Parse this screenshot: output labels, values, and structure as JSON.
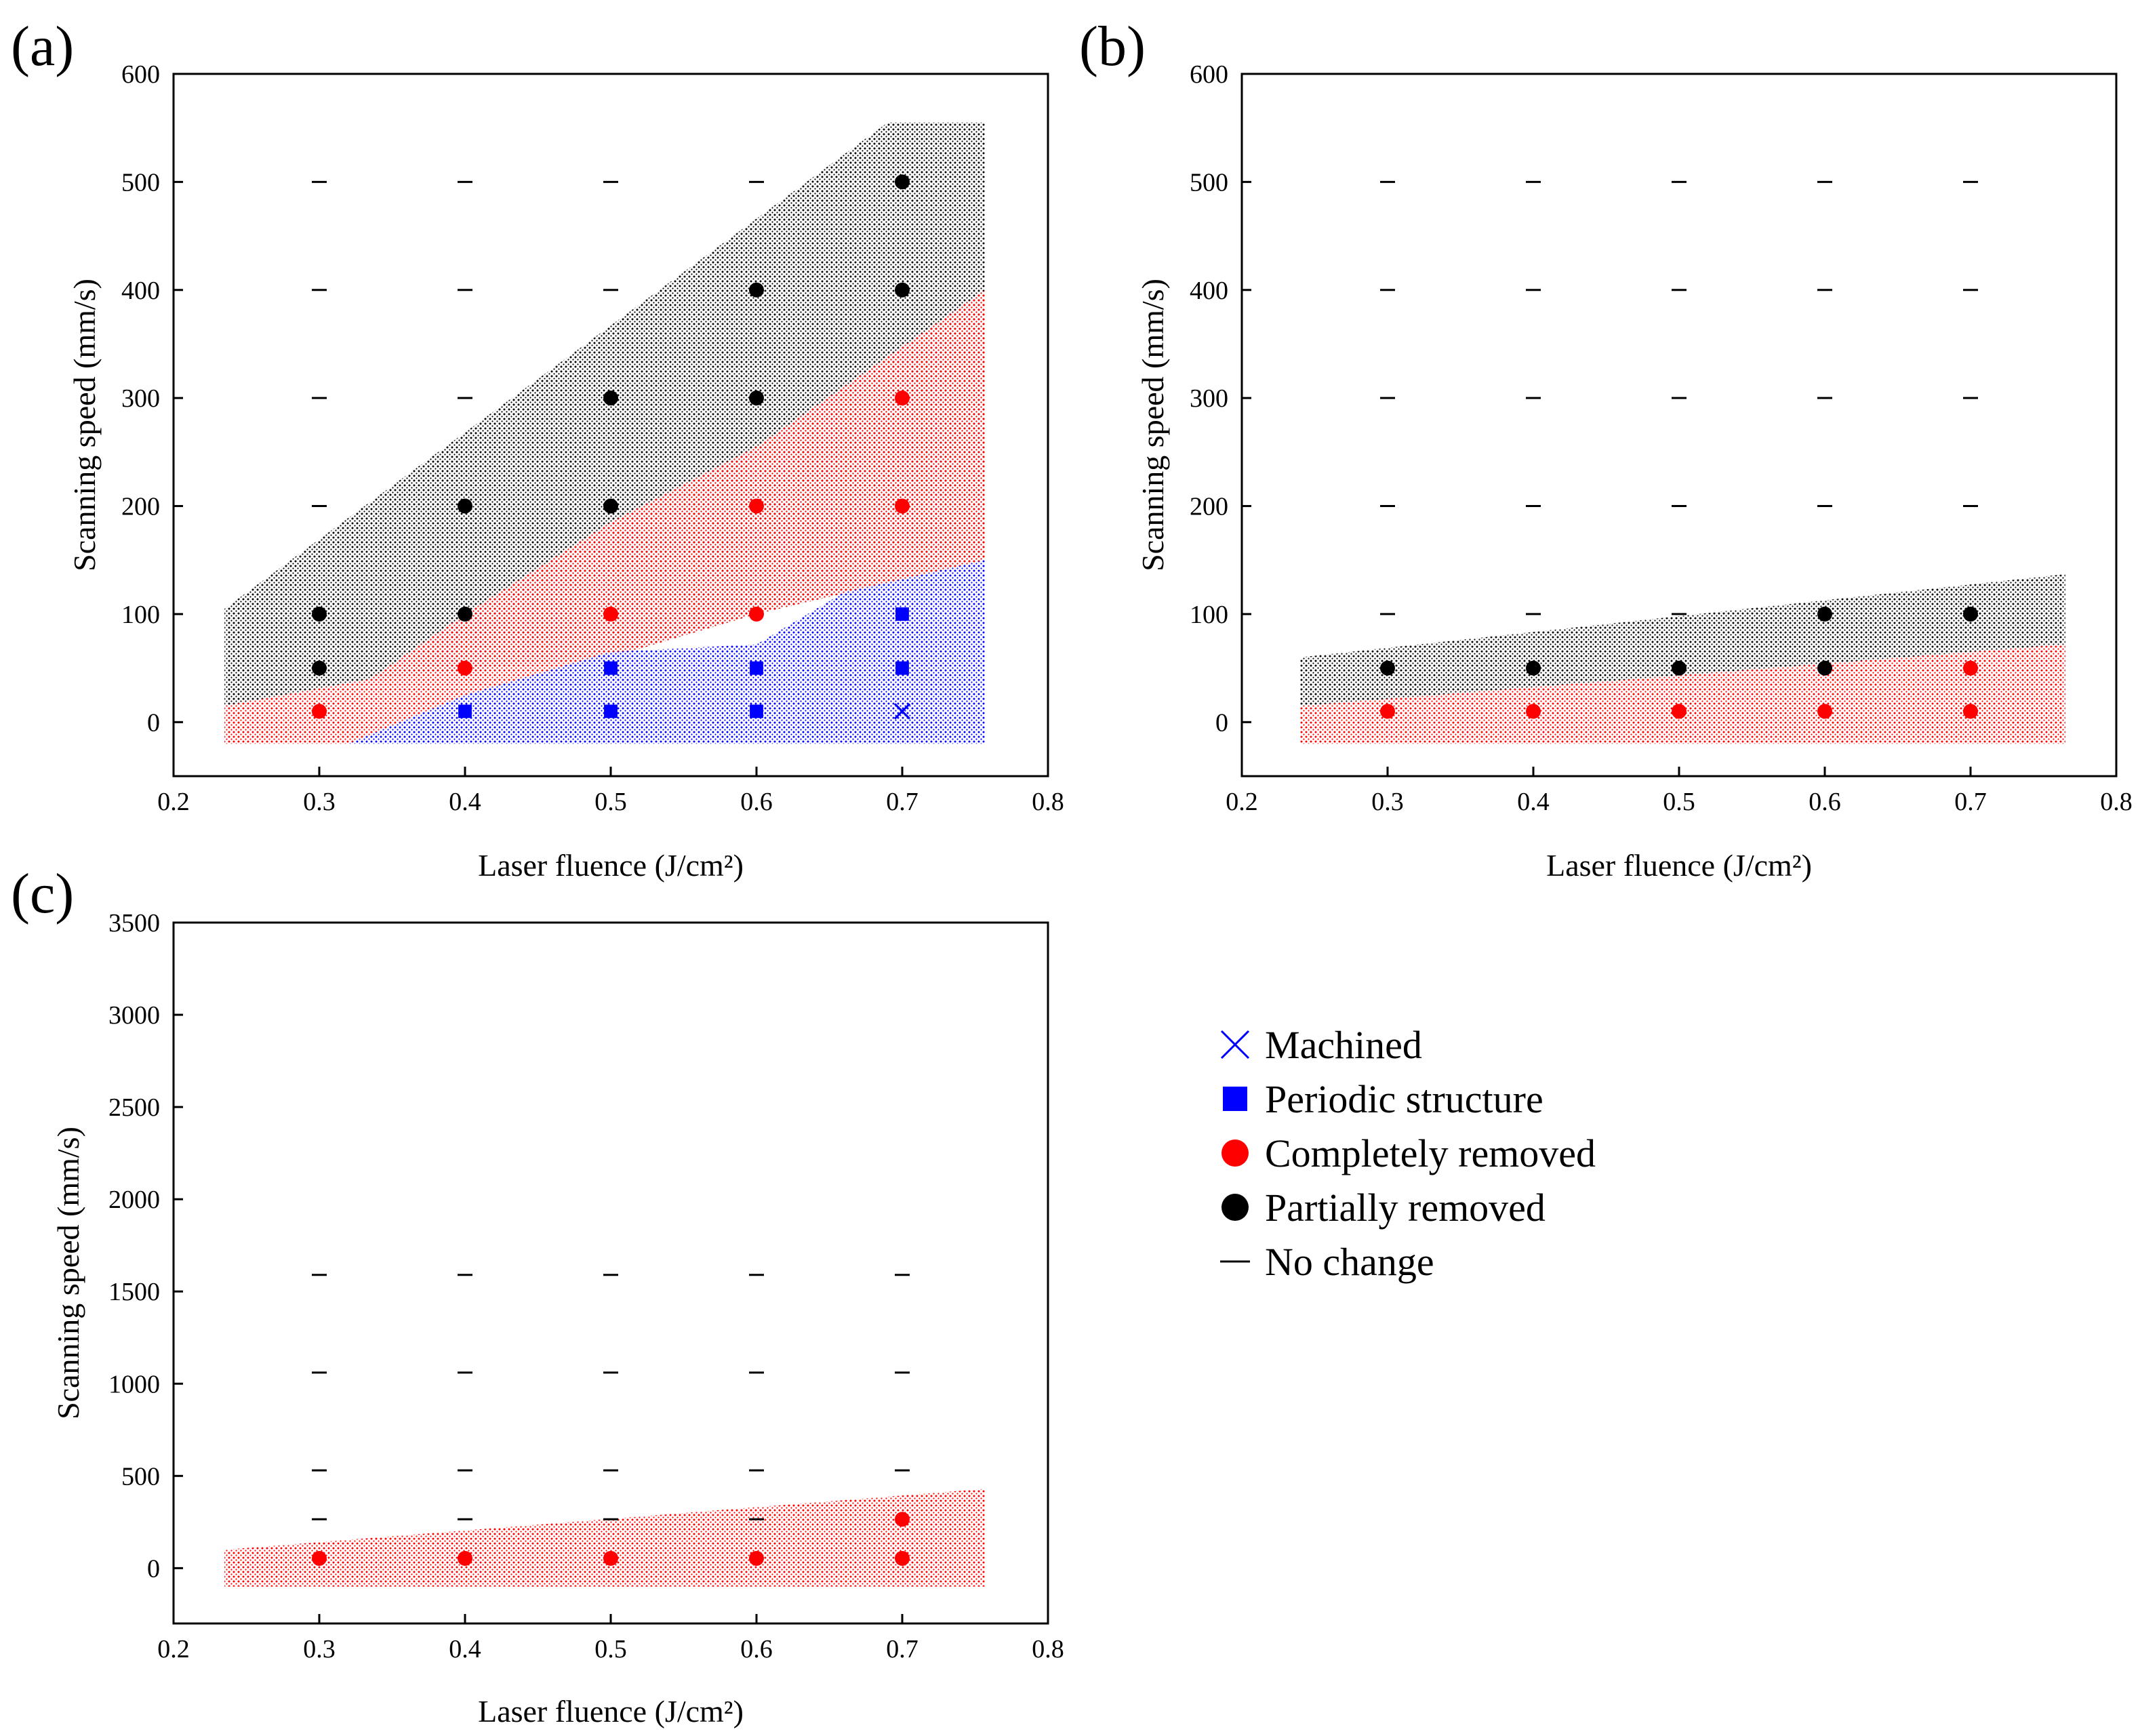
{
  "figure": {
    "legend": {
      "items": [
        {
          "key": "machined",
          "label": "Machined",
          "color": "#0000ff",
          "marker": "x"
        },
        {
          "key": "periodic",
          "label": "Periodic structure",
          "color": "#0000ff",
          "marker": "square"
        },
        {
          "key": "completely",
          "label": "Completely removed",
          "color": "#ff0000",
          "marker": "circle"
        },
        {
          "key": "partially",
          "label": "Partially removed",
          "color": "#000000",
          "marker": "circle"
        },
        {
          "key": "nochange",
          "label": "No change",
          "color": "#000000",
          "marker": "dash"
        }
      ]
    }
  },
  "chart_data": [
    {
      "id": "a",
      "panel_label": "(a)",
      "type": "scatter",
      "xlabel": "Laser fluence (J/cm²)",
      "ylabel": "Scanning speed (mm/s)",
      "xlim": [
        0.2,
        0.8
      ],
      "ylim": [
        -50,
        600
      ],
      "xticks": [
        0.2,
        0.3,
        0.4,
        0.5,
        0.6,
        0.7,
        0.8
      ],
      "xtick_labels": [
        "0.2",
        "0.3",
        "0.4",
        "0.5",
        "0.6",
        "0.7",
        "0.8"
      ],
      "yticks": [
        0,
        100,
        200,
        300,
        400,
        500,
        600
      ],
      "ytick_labels": [
        "0",
        "100",
        "200",
        "300",
        "400",
        "500",
        "600"
      ],
      "regions": [
        {
          "class": "partially",
          "color": "#000000",
          "polygon": [
            [
              0.235,
              105
            ],
            [
              0.235,
              15
            ],
            [
              0.335,
              40
            ],
            [
              0.5,
              60
            ],
            [
              0.6,
              100
            ],
            [
              0.757,
              150
            ],
            [
              0.757,
              555
            ],
            [
              0.69,
              555
            ]
          ]
        },
        {
          "class": "completely",
          "color": "#ff0000",
          "polygon": [
            [
              0.235,
              15
            ],
            [
              0.335,
              40
            ],
            [
              0.4,
              100
            ],
            [
              0.5,
              185
            ],
            [
              0.6,
              255
            ],
            [
              0.757,
              400
            ],
            [
              0.757,
              150
            ],
            [
              0.6,
              100
            ],
            [
              0.5,
              60
            ],
            [
              0.4,
              25
            ],
            [
              0.32,
              -20
            ],
            [
              0.235,
              -20
            ]
          ]
        },
        {
          "class": "periodic",
          "color": "#0000ff",
          "polygon": [
            [
              0.32,
              -20
            ],
            [
              0.757,
              -20
            ],
            [
              0.757,
              150
            ],
            [
              0.66,
              120
            ],
            [
              0.6,
              72
            ],
            [
              0.5,
              65
            ],
            [
              0.4,
              25
            ]
          ]
        }
      ],
      "points": [
        {
          "x": 0.3,
          "y": 500,
          "class": "nochange"
        },
        {
          "x": 0.4,
          "y": 500,
          "class": "nochange"
        },
        {
          "x": 0.5,
          "y": 500,
          "class": "nochange"
        },
        {
          "x": 0.6,
          "y": 500,
          "class": "nochange"
        },
        {
          "x": 0.7,
          "y": 500,
          "class": "partially"
        },
        {
          "x": 0.3,
          "y": 400,
          "class": "nochange"
        },
        {
          "x": 0.4,
          "y": 400,
          "class": "nochange"
        },
        {
          "x": 0.5,
          "y": 400,
          "class": "nochange"
        },
        {
          "x": 0.6,
          "y": 400,
          "class": "partially"
        },
        {
          "x": 0.7,
          "y": 400,
          "class": "partially"
        },
        {
          "x": 0.3,
          "y": 300,
          "class": "nochange"
        },
        {
          "x": 0.4,
          "y": 300,
          "class": "nochange"
        },
        {
          "x": 0.5,
          "y": 300,
          "class": "partially"
        },
        {
          "x": 0.6,
          "y": 300,
          "class": "partially"
        },
        {
          "x": 0.7,
          "y": 300,
          "class": "completely"
        },
        {
          "x": 0.3,
          "y": 200,
          "class": "nochange"
        },
        {
          "x": 0.4,
          "y": 200,
          "class": "partially"
        },
        {
          "x": 0.5,
          "y": 200,
          "class": "partially"
        },
        {
          "x": 0.6,
          "y": 200,
          "class": "completely"
        },
        {
          "x": 0.7,
          "y": 200,
          "class": "completely"
        },
        {
          "x": 0.3,
          "y": 100,
          "class": "partially"
        },
        {
          "x": 0.4,
          "y": 100,
          "class": "partially"
        },
        {
          "x": 0.5,
          "y": 100,
          "class": "completely"
        },
        {
          "x": 0.6,
          "y": 100,
          "class": "completely"
        },
        {
          "x": 0.7,
          "y": 100,
          "class": "periodic"
        },
        {
          "x": 0.3,
          "y": 50,
          "class": "partially"
        },
        {
          "x": 0.4,
          "y": 50,
          "class": "completely"
        },
        {
          "x": 0.5,
          "y": 50,
          "class": "periodic"
        },
        {
          "x": 0.6,
          "y": 50,
          "class": "periodic"
        },
        {
          "x": 0.7,
          "y": 50,
          "class": "periodic"
        },
        {
          "x": 0.3,
          "y": 10,
          "class": "completely"
        },
        {
          "x": 0.4,
          "y": 10,
          "class": "periodic"
        },
        {
          "x": 0.5,
          "y": 10,
          "class": "periodic"
        },
        {
          "x": 0.6,
          "y": 10,
          "class": "periodic"
        },
        {
          "x": 0.7,
          "y": 10,
          "class": "machined"
        }
      ]
    },
    {
      "id": "b",
      "panel_label": "(b)",
      "type": "scatter",
      "xlabel": "Laser fluence (J/cm²)",
      "ylabel": "Scanning speed (mm/s)",
      "xlim": [
        0.2,
        0.8
      ],
      "ylim": [
        -50,
        600
      ],
      "xticks": [
        0.2,
        0.3,
        0.4,
        0.5,
        0.6,
        0.7,
        0.8
      ],
      "xtick_labels": [
        "0.2",
        "0.3",
        "0.4",
        "0.5",
        "0.6",
        "0.7",
        "0.8"
      ],
      "yticks": [
        0,
        100,
        200,
        300,
        400,
        500,
        600
      ],
      "ytick_labels": [
        "0",
        "100",
        "200",
        "300",
        "400",
        "500",
        "600"
      ],
      "regions": [
        {
          "class": "partially",
          "color": "#000000",
          "polygon": [
            [
              0.24,
              60
            ],
            [
              0.765,
              137
            ],
            [
              0.765,
              72
            ],
            [
              0.24,
              15
            ]
          ]
        },
        {
          "class": "completely",
          "color": "#ff0000",
          "polygon": [
            [
              0.24,
              15
            ],
            [
              0.765,
              72
            ],
            [
              0.765,
              -20
            ],
            [
              0.24,
              -20
            ]
          ]
        }
      ],
      "points": [
        {
          "x": 0.3,
          "y": 500,
          "class": "nochange"
        },
        {
          "x": 0.4,
          "y": 500,
          "class": "nochange"
        },
        {
          "x": 0.5,
          "y": 500,
          "class": "nochange"
        },
        {
          "x": 0.6,
          "y": 500,
          "class": "nochange"
        },
        {
          "x": 0.7,
          "y": 500,
          "class": "nochange"
        },
        {
          "x": 0.3,
          "y": 400,
          "class": "nochange"
        },
        {
          "x": 0.4,
          "y": 400,
          "class": "nochange"
        },
        {
          "x": 0.5,
          "y": 400,
          "class": "nochange"
        },
        {
          "x": 0.6,
          "y": 400,
          "class": "nochange"
        },
        {
          "x": 0.7,
          "y": 400,
          "class": "nochange"
        },
        {
          "x": 0.3,
          "y": 300,
          "class": "nochange"
        },
        {
          "x": 0.4,
          "y": 300,
          "class": "nochange"
        },
        {
          "x": 0.5,
          "y": 300,
          "class": "nochange"
        },
        {
          "x": 0.6,
          "y": 300,
          "class": "nochange"
        },
        {
          "x": 0.7,
          "y": 300,
          "class": "nochange"
        },
        {
          "x": 0.3,
          "y": 200,
          "class": "nochange"
        },
        {
          "x": 0.4,
          "y": 200,
          "class": "nochange"
        },
        {
          "x": 0.5,
          "y": 200,
          "class": "nochange"
        },
        {
          "x": 0.6,
          "y": 200,
          "class": "nochange"
        },
        {
          "x": 0.7,
          "y": 200,
          "class": "nochange"
        },
        {
          "x": 0.3,
          "y": 100,
          "class": "nochange"
        },
        {
          "x": 0.4,
          "y": 100,
          "class": "nochange"
        },
        {
          "x": 0.5,
          "y": 100,
          "class": "nochange"
        },
        {
          "x": 0.6,
          "y": 100,
          "class": "partially"
        },
        {
          "x": 0.7,
          "y": 100,
          "class": "partially"
        },
        {
          "x": 0.3,
          "y": 50,
          "class": "partially"
        },
        {
          "x": 0.4,
          "y": 50,
          "class": "partially"
        },
        {
          "x": 0.5,
          "y": 50,
          "class": "partially"
        },
        {
          "x": 0.6,
          "y": 50,
          "class": "partially"
        },
        {
          "x": 0.7,
          "y": 50,
          "class": "completely"
        },
        {
          "x": 0.3,
          "y": 10,
          "class": "completely"
        },
        {
          "x": 0.4,
          "y": 10,
          "class": "completely"
        },
        {
          "x": 0.5,
          "y": 10,
          "class": "completely"
        },
        {
          "x": 0.6,
          "y": 10,
          "class": "completely"
        },
        {
          "x": 0.7,
          "y": 10,
          "class": "completely"
        }
      ]
    },
    {
      "id": "c",
      "panel_label": "(c)",
      "type": "scatter",
      "xlabel": "Laser fluence (J/cm²)",
      "ylabel": "Scanning speed (mm/s)",
      "xlim": [
        0.2,
        0.8
      ],
      "ylim": [
        -300,
        3500
      ],
      "xticks": [
        0.2,
        0.3,
        0.4,
        0.5,
        0.6,
        0.7,
        0.8
      ],
      "xtick_labels": [
        "0.2",
        "0.3",
        "0.4",
        "0.5",
        "0.6",
        "0.7",
        "0.8"
      ],
      "yticks": [
        0,
        500,
        1000,
        1500,
        2000,
        2500,
        3000,
        3500
      ],
      "ytick_labels": [
        "0",
        "500",
        "1000",
        "1500",
        "2000",
        "2500",
        "3000",
        "3500"
      ],
      "regions": [
        {
          "class": "completely",
          "color": "#ff0000",
          "polygon": [
            [
              0.235,
              100
            ],
            [
              0.757,
              430
            ],
            [
              0.757,
              -100
            ],
            [
              0.235,
              -100
            ]
          ]
        }
      ],
      "points": [
        {
          "x": 0.3,
          "y": 1590,
          "class": "nochange"
        },
        {
          "x": 0.4,
          "y": 1590,
          "class": "nochange"
        },
        {
          "x": 0.5,
          "y": 1590,
          "class": "nochange"
        },
        {
          "x": 0.6,
          "y": 1590,
          "class": "nochange"
        },
        {
          "x": 0.7,
          "y": 1590,
          "class": "nochange"
        },
        {
          "x": 0.3,
          "y": 1060,
          "class": "nochange"
        },
        {
          "x": 0.4,
          "y": 1060,
          "class": "nochange"
        },
        {
          "x": 0.5,
          "y": 1060,
          "class": "nochange"
        },
        {
          "x": 0.6,
          "y": 1060,
          "class": "nochange"
        },
        {
          "x": 0.7,
          "y": 1060,
          "class": "nochange"
        },
        {
          "x": 0.3,
          "y": 530,
          "class": "nochange"
        },
        {
          "x": 0.4,
          "y": 530,
          "class": "nochange"
        },
        {
          "x": 0.5,
          "y": 530,
          "class": "nochange"
        },
        {
          "x": 0.6,
          "y": 530,
          "class": "nochange"
        },
        {
          "x": 0.7,
          "y": 530,
          "class": "nochange"
        },
        {
          "x": 0.3,
          "y": 265,
          "class": "nochange"
        },
        {
          "x": 0.4,
          "y": 265,
          "class": "nochange"
        },
        {
          "x": 0.5,
          "y": 265,
          "class": "nochange"
        },
        {
          "x": 0.6,
          "y": 265,
          "class": "nochange"
        },
        {
          "x": 0.7,
          "y": 265,
          "class": "completely"
        },
        {
          "x": 0.3,
          "y": 53,
          "class": "completely"
        },
        {
          "x": 0.4,
          "y": 53,
          "class": "completely"
        },
        {
          "x": 0.5,
          "y": 53,
          "class": "completely"
        },
        {
          "x": 0.6,
          "y": 53,
          "class": "completely"
        },
        {
          "x": 0.7,
          "y": 53,
          "class": "completely"
        }
      ]
    }
  ]
}
